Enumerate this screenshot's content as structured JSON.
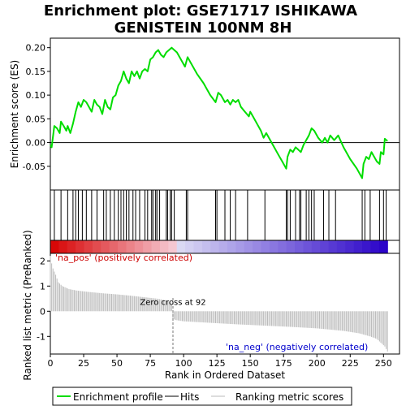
{
  "chart_data": {
    "type": "line",
    "title": "Enrichment plot: GSE71717 ISHIKAWA GENISTEIN 100NM 8H",
    "xlabel": "Rank in Ordered Dataset",
    "xlim": [
      0,
      262
    ],
    "xticks": [
      0,
      25,
      50,
      75,
      100,
      125,
      150,
      175,
      200,
      225,
      250
    ],
    "es_panel": {
      "ylabel": "Enrichment score (ES)",
      "ylim": [
        -0.1,
        0.22
      ],
      "yticks": [
        -0.05,
        0.0,
        0.05,
        0.1,
        0.15,
        0.2
      ],
      "ytick_labels": [
        "-0.05",
        "0.00",
        "0.05",
        "0.10",
        "0.15",
        "0.20"
      ],
      "series_name": "Enrichment profile",
      "color": "#00dd00",
      "points": [
        [
          0,
          -0.005
        ],
        [
          1,
          -0.01
        ],
        [
          3,
          0.035
        ],
        [
          5,
          0.03
        ],
        [
          7,
          0.02
        ],
        [
          8,
          0.044
        ],
        [
          10,
          0.035
        ],
        [
          12,
          0.025
        ],
        [
          13,
          0.035
        ],
        [
          15,
          0.02
        ],
        [
          17,
          0.04
        ],
        [
          19,
          0.065
        ],
        [
          21,
          0.085
        ],
        [
          23,
          0.075
        ],
        [
          25,
          0.09
        ],
        [
          27,
          0.085
        ],
        [
          29,
          0.075
        ],
        [
          31,
          0.065
        ],
        [
          33,
          0.09
        ],
        [
          35,
          0.08
        ],
        [
          37,
          0.075
        ],
        [
          39,
          0.06
        ],
        [
          41,
          0.09
        ],
        [
          43,
          0.075
        ],
        [
          45,
          0.07
        ],
        [
          47,
          0.095
        ],
        [
          49,
          0.1
        ],
        [
          51,
          0.12
        ],
        [
          53,
          0.13
        ],
        [
          55,
          0.15
        ],
        [
          57,
          0.135
        ],
        [
          59,
          0.125
        ],
        [
          61,
          0.15
        ],
        [
          63,
          0.14
        ],
        [
          65,
          0.15
        ],
        [
          67,
          0.135
        ],
        [
          69,
          0.15
        ],
        [
          71,
          0.155
        ],
        [
          73,
          0.15
        ],
        [
          75,
          0.175
        ],
        [
          77,
          0.18
        ],
        [
          79,
          0.19
        ],
        [
          81,
          0.195
        ],
        [
          83,
          0.185
        ],
        [
          85,
          0.18
        ],
        [
          87,
          0.19
        ],
        [
          89,
          0.195
        ],
        [
          91,
          0.2
        ],
        [
          93,
          0.195
        ],
        [
          95,
          0.19
        ],
        [
          97,
          0.18
        ],
        [
          99,
          0.17
        ],
        [
          101,
          0.16
        ],
        [
          103,
          0.18
        ],
        [
          105,
          0.17
        ],
        [
          110,
          0.145
        ],
        [
          115,
          0.125
        ],
        [
          120,
          0.1
        ],
        [
          124,
          0.085
        ],
        [
          126,
          0.105
        ],
        [
          128,
          0.1
        ],
        [
          131,
          0.085
        ],
        [
          133,
          0.09
        ],
        [
          135,
          0.08
        ],
        [
          137,
          0.09
        ],
        [
          139,
          0.085
        ],
        [
          141,
          0.09
        ],
        [
          143,
          0.075
        ],
        [
          146,
          0.065
        ],
        [
          149,
          0.055
        ],
        [
          150,
          0.065
        ],
        [
          152,
          0.055
        ],
        [
          155,
          0.04
        ],
        [
          158,
          0.025
        ],
        [
          160,
          0.01
        ],
        [
          162,
          0.02
        ],
        [
          165,
          0.005
        ],
        [
          168,
          -0.01
        ],
        [
          171,
          -0.025
        ],
        [
          174,
          -0.04
        ],
        [
          177,
          -0.055
        ],
        [
          178,
          -0.03
        ],
        [
          180,
          -0.015
        ],
        [
          182,
          -0.02
        ],
        [
          184,
          -0.01
        ],
        [
          186,
          -0.015
        ],
        [
          188,
          -0.02
        ],
        [
          190,
          -0.005
        ],
        [
          192,
          0.005
        ],
        [
          194,
          0.015
        ],
        [
          196,
          0.03
        ],
        [
          198,
          0.025
        ],
        [
          201,
          0.01
        ],
        [
          204,
          0.0
        ],
        [
          206,
          0.01
        ],
        [
          208,
          0.0
        ],
        [
          210,
          0.015
        ],
        [
          213,
          0.005
        ],
        [
          216,
          0.015
        ],
        [
          220,
          -0.01
        ],
        [
          225,
          -0.035
        ],
        [
          230,
          -0.055
        ],
        [
          234,
          -0.075
        ],
        [
          235,
          -0.045
        ],
        [
          237,
          -0.03
        ],
        [
          239,
          -0.035
        ],
        [
          241,
          -0.02
        ],
        [
          243,
          -0.03
        ],
        [
          245,
          -0.04
        ],
        [
          247,
          -0.045
        ],
        [
          248,
          -0.02
        ],
        [
          250,
          -0.025
        ],
        [
          251,
          0.008
        ],
        [
          253,
          0.003
        ]
      ]
    },
    "hits": {
      "label": "Hits",
      "ranks": [
        3,
        8,
        13,
        17,
        19,
        21,
        24,
        27,
        31,
        35,
        40,
        42,
        45,
        48,
        51,
        53,
        55,
        57,
        59,
        62,
        64,
        67,
        71,
        73,
        76,
        77,
        79,
        80,
        82,
        87,
        88,
        90,
        91,
        93,
        102,
        103,
        124,
        125,
        131,
        135,
        139,
        148,
        161,
        177,
        178,
        180,
        184,
        187,
        188,
        192,
        194,
        196,
        198,
        205,
        209,
        214,
        234,
        236,
        240,
        247,
        250,
        252
      ]
    },
    "ranking_metric": {
      "ylabel": "Ranked list metric (PreRanked)",
      "series_name": "Ranking metric scores",
      "ylim": [
        -1.7,
        2.3
      ],
      "yticks": [
        -1,
        0,
        1,
        2
      ],
      "ytick_labels": [
        "-1",
        "0",
        "1",
        "2"
      ],
      "zero_cross_rank": 92,
      "zero_cross_label": "Zero cross at 92",
      "pos_label": "'na_pos' (positively correlated)",
      "neg_label": "'na_neg' (negatively correlated)",
      "profile": [
        [
          0,
          2.2
        ],
        [
          1,
          1.9
        ],
        [
          2,
          1.7
        ],
        [
          4,
          1.45
        ],
        [
          6,
          1.15
        ],
        [
          9,
          1.0
        ],
        [
          14,
          0.88
        ],
        [
          20,
          0.82
        ],
        [
          30,
          0.76
        ],
        [
          40,
          0.71
        ],
        [
          50,
          0.67
        ],
        [
          60,
          0.62
        ],
        [
          70,
          0.56
        ],
        [
          80,
          0.5
        ],
        [
          88,
          0.42
        ],
        [
          91,
          0.3
        ],
        [
          92,
          -0.3
        ],
        [
          94,
          -0.35
        ],
        [
          100,
          -0.4
        ],
        [
          120,
          -0.46
        ],
        [
          140,
          -0.52
        ],
        [
          160,
          -0.57
        ],
        [
          180,
          -0.62
        ],
        [
          200,
          -0.68
        ],
        [
          220,
          -0.78
        ],
        [
          232,
          -0.88
        ],
        [
          240,
          -1.0
        ],
        [
          245,
          -1.1
        ],
        [
          248,
          -1.25
        ],
        [
          251,
          -1.4
        ],
        [
          253,
          -1.6
        ]
      ]
    },
    "legend": {
      "placement": "bottom",
      "items": [
        {
          "label": "Enrichment profile",
          "color": "#00dd00"
        },
        {
          "label": "Hits",
          "color": "#000000"
        },
        {
          "label": "Ranking metric scores",
          "color": "#bbbbbb"
        }
      ]
    }
  }
}
